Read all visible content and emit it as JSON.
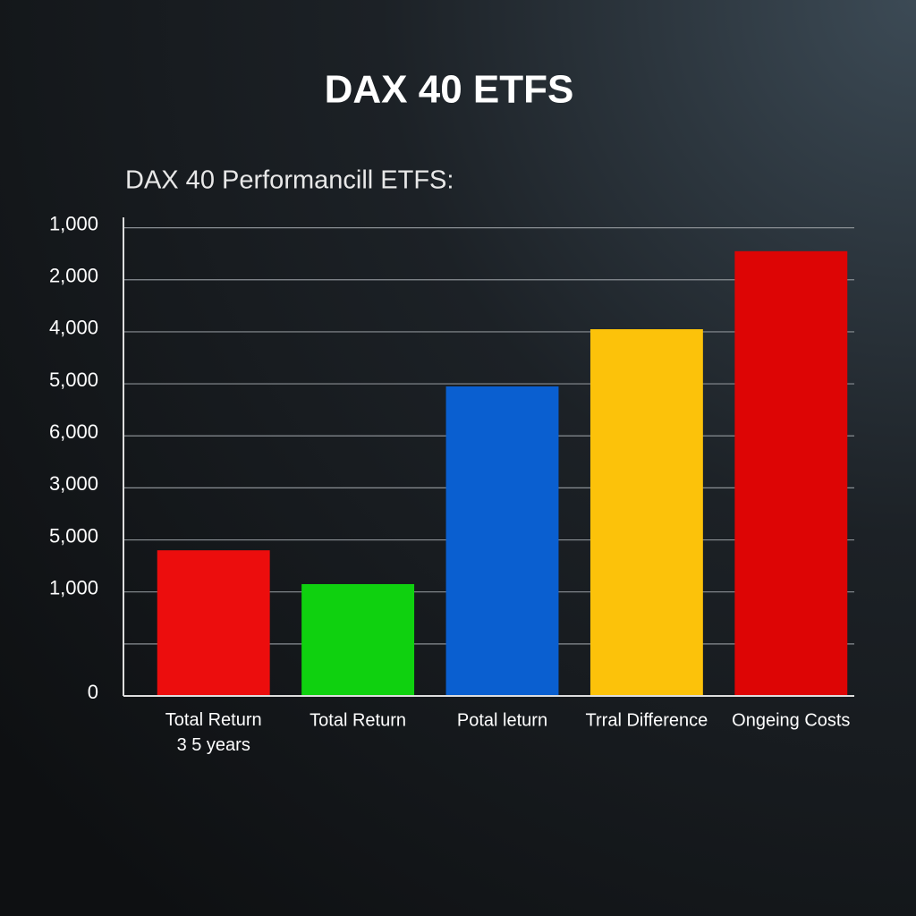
{
  "chart_data": {
    "type": "bar",
    "title": "DAX 40 ETFS",
    "subtitle": "DAX 40 Performancill ETFS:",
    "categories": [
      "Total Return\n3 5 years",
      "Total Return",
      "Potal leturn",
      "Trral Difference",
      "Ongeing Costs"
    ],
    "values": [
      2.8,
      2.15,
      5.95,
      7.05,
      8.55
    ],
    "colors": [
      "#ec0d0d",
      "#0fd10f",
      "#0a5fd0",
      "#fcc20a",
      "#dd0505"
    ],
    "ylim": [
      0,
      9.2
    ],
    "yticks": [
      0,
      {
        "value": 1,
        "label": null
      },
      {
        "value": 2,
        "label": "1,000"
      },
      {
        "value": 3,
        "label": "5,000"
      },
      {
        "value": 4,
        "label": "3,000"
      },
      {
        "value": 5,
        "label": "6,000"
      },
      {
        "value": 6,
        "label": "5,000"
      },
      {
        "value": 7,
        "label": "4,000"
      },
      {
        "value": 8,
        "label": "2,000"
      },
      {
        "value": 9,
        "label": "1,000"
      }
    ],
    "grid": true
  }
}
